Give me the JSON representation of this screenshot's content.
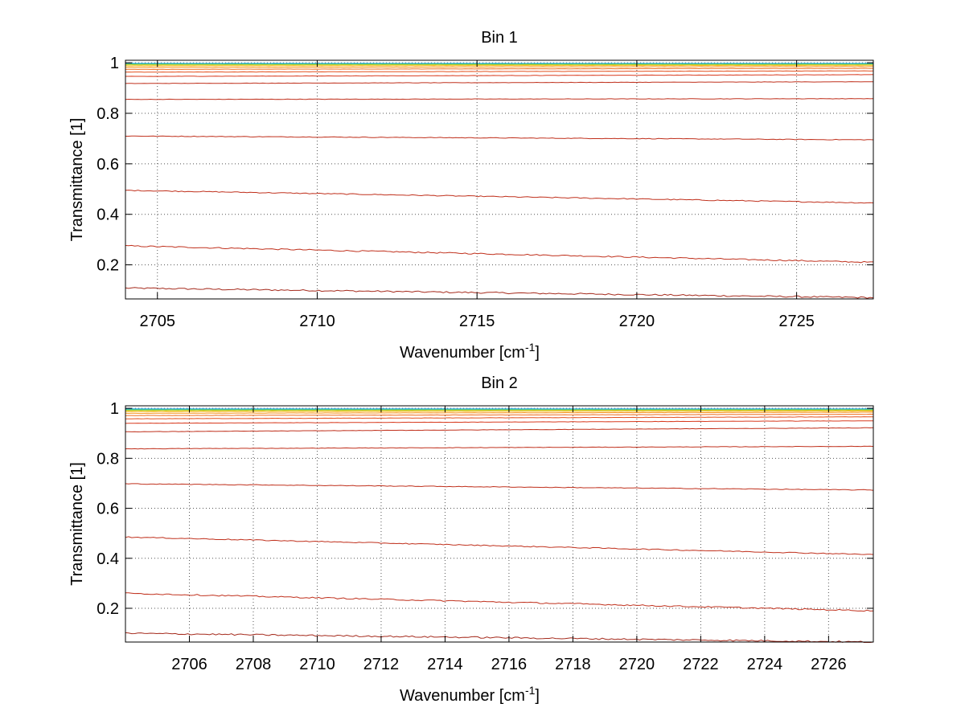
{
  "chart_data": [
    {
      "type": "line",
      "title": "Bin 1",
      "xlabel": "Wavenumber [cm",
      "xlabel_sup": "-1",
      "xlabel_end": "]",
      "ylabel": "Transmittance [1]",
      "xlim": [
        2704,
        2727.4
      ],
      "ylim": [
        0.065,
        1.01
      ],
      "xticks": [
        2705,
        2710,
        2715,
        2720,
        2725
      ],
      "yticks": [
        0.2,
        0.4,
        0.6,
        0.8,
        1
      ],
      "ytick_labels": [
        "0.2",
        "0.4",
        "0.6",
        "0.8",
        "1"
      ],
      "grid": true,
      "series": [
        {
          "color": "#a52a1c",
          "y_start": 0.108,
          "y_end": 0.07
        },
        {
          "color": "#c0301c",
          "y_start": 0.275,
          "y_end": 0.21
        },
        {
          "color": "#c0301c",
          "y_start": 0.495,
          "y_end": 0.445
        },
        {
          "color": "#c0301c",
          "y_start": 0.71,
          "y_end": 0.695
        },
        {
          "color": "#c0301c",
          "y_start": 0.855,
          "y_end": 0.858
        },
        {
          "color": "#c0301c",
          "y_start": 0.918,
          "y_end": 0.925
        },
        {
          "color": "#d83a1e",
          "y_start": 0.946,
          "y_end": 0.953
        },
        {
          "color": "#e4501e",
          "y_start": 0.963,
          "y_end": 0.968
        },
        {
          "color": "#ee6e1e",
          "y_start": 0.974,
          "y_end": 0.978
        },
        {
          "color": "#f6931e",
          "y_start": 0.982,
          "y_end": 0.985
        },
        {
          "color": "#f8b81c",
          "y_start": 0.988,
          "y_end": 0.99
        },
        {
          "color": "#d2cc1e",
          "y_start": 0.992,
          "y_end": 0.993
        },
        {
          "color": "#7fd23c",
          "y_start": 0.995,
          "y_end": 0.995
        },
        {
          "color": "#2fc8a8",
          "y_start": 0.997,
          "y_end": 0.997
        },
        {
          "color": "#2aa8e0",
          "y_start": 0.998,
          "y_end": 0.998
        }
      ]
    },
    {
      "type": "line",
      "title": "Bin 2",
      "xlabel": "Wavenumber [cm",
      "xlabel_sup": "-1",
      "xlabel_end": "]",
      "ylabel": "Transmittance [1]",
      "xlim": [
        2704,
        2727.4
      ],
      "ylim": [
        0.065,
        1.01
      ],
      "xticks": [
        2706,
        2708,
        2710,
        2712,
        2714,
        2716,
        2718,
        2720,
        2722,
        2724,
        2726
      ],
      "yticks": [
        0.2,
        0.4,
        0.6,
        0.8,
        1
      ],
      "ytick_labels": [
        "0.2",
        "0.4",
        "0.6",
        "0.8",
        "1"
      ],
      "grid": true,
      "series": [
        {
          "color": "#a52a1c",
          "y_start": 0.1,
          "y_end": 0.065
        },
        {
          "color": "#c0301c",
          "y_start": 0.26,
          "y_end": 0.19
        },
        {
          "color": "#c0301c",
          "y_start": 0.485,
          "y_end": 0.415
        },
        {
          "color": "#c0301c",
          "y_start": 0.698,
          "y_end": 0.673
        },
        {
          "color": "#c0301c",
          "y_start": 0.838,
          "y_end": 0.848
        },
        {
          "color": "#c0301c",
          "y_start": 0.906,
          "y_end": 0.922
        },
        {
          "color": "#d83a1e",
          "y_start": 0.94,
          "y_end": 0.95
        },
        {
          "color": "#e4501e",
          "y_start": 0.958,
          "y_end": 0.966
        },
        {
          "color": "#ee6e1e",
          "y_start": 0.971,
          "y_end": 0.976
        },
        {
          "color": "#f6931e",
          "y_start": 0.98,
          "y_end": 0.984
        },
        {
          "color": "#f8b81c",
          "y_start": 0.987,
          "y_end": 0.989
        },
        {
          "color": "#d2cc1e",
          "y_start": 0.991,
          "y_end": 0.992
        },
        {
          "color": "#7fd23c",
          "y_start": 0.994,
          "y_end": 0.995
        },
        {
          "color": "#2fc8a8",
          "y_start": 0.996,
          "y_end": 0.997
        },
        {
          "color": "#2aa8e0",
          "y_start": 0.998,
          "y_end": 0.998
        }
      ]
    }
  ]
}
